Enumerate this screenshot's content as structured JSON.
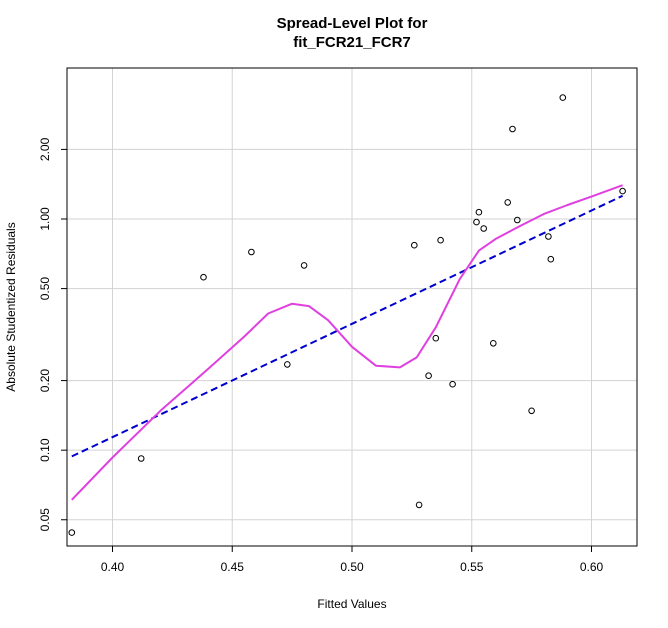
{
  "chart_data": {
    "type": "scatter",
    "title": [
      "Spread-Level Plot for",
      "fit_FCR21_FCR7"
    ],
    "xlabel": "Fitted Values",
    "ylabel": "Absolute Studentized Residuals",
    "xlim": [
      0.381,
      0.619
    ],
    "ylim": [
      0.0385,
      4.5
    ],
    "y_scale": "log",
    "grid": true,
    "x_ticks": [
      0.4,
      0.45,
      0.5,
      0.55,
      0.6
    ],
    "x_tick_labels": [
      "0.40",
      "0.45",
      "0.50",
      "0.55",
      "0.60"
    ],
    "y_ticks": [
      0.05,
      0.1,
      0.2,
      0.5,
      1.0,
      2.0
    ],
    "y_tick_labels": [
      "0.05",
      "0.10",
      "0.20",
      "0.50",
      "1.00",
      "2.00"
    ],
    "colors": {
      "points": "#000000",
      "fit_line": "#0000cd",
      "smooth_line": "#e040e0",
      "grid": "#d3d3d3"
    },
    "points": [
      {
        "x": 0.383,
        "y": 0.044
      },
      {
        "x": 0.412,
        "y": 0.092
      },
      {
        "x": 0.438,
        "y": 0.56
      },
      {
        "x": 0.458,
        "y": 0.72
      },
      {
        "x": 0.473,
        "y": 0.235
      },
      {
        "x": 0.48,
        "y": 0.63
      },
      {
        "x": 0.526,
        "y": 0.77
      },
      {
        "x": 0.528,
        "y": 0.058
      },
      {
        "x": 0.532,
        "y": 0.21
      },
      {
        "x": 0.535,
        "y": 0.305
      },
      {
        "x": 0.537,
        "y": 0.81
      },
      {
        "x": 0.542,
        "y": 0.193
      },
      {
        "x": 0.552,
        "y": 0.97
      },
      {
        "x": 0.553,
        "y": 1.07
      },
      {
        "x": 0.555,
        "y": 0.91
      },
      {
        "x": 0.559,
        "y": 0.29
      },
      {
        "x": 0.565,
        "y": 1.18
      },
      {
        "x": 0.567,
        "y": 2.45
      },
      {
        "x": 0.569,
        "y": 0.99
      },
      {
        "x": 0.575,
        "y": 0.148
      },
      {
        "x": 0.582,
        "y": 0.84
      },
      {
        "x": 0.583,
        "y": 0.67
      },
      {
        "x": 0.588,
        "y": 3.35
      },
      {
        "x": 0.613,
        "y": 1.32
      }
    ],
    "fit_line": [
      {
        "x": 0.383,
        "y": 0.094
      },
      {
        "x": 0.613,
        "y": 1.26
      }
    ],
    "smooth_line": [
      {
        "x": 0.383,
        "y": 0.061
      },
      {
        "x": 0.4,
        "y": 0.093
      },
      {
        "x": 0.42,
        "y": 0.148
      },
      {
        "x": 0.44,
        "y": 0.225
      },
      {
        "x": 0.455,
        "y": 0.31
      },
      {
        "x": 0.465,
        "y": 0.39
      },
      {
        "x": 0.475,
        "y": 0.43
      },
      {
        "x": 0.482,
        "y": 0.42
      },
      {
        "x": 0.49,
        "y": 0.365
      },
      {
        "x": 0.5,
        "y": 0.28
      },
      {
        "x": 0.51,
        "y": 0.232
      },
      {
        "x": 0.52,
        "y": 0.228
      },
      {
        "x": 0.527,
        "y": 0.252
      },
      {
        "x": 0.535,
        "y": 0.34
      },
      {
        "x": 0.545,
        "y": 0.55
      },
      {
        "x": 0.553,
        "y": 0.73
      },
      {
        "x": 0.56,
        "y": 0.82
      },
      {
        "x": 0.57,
        "y": 0.93
      },
      {
        "x": 0.58,
        "y": 1.05
      },
      {
        "x": 0.59,
        "y": 1.15
      },
      {
        "x": 0.6,
        "y": 1.25
      },
      {
        "x": 0.613,
        "y": 1.4
      }
    ]
  }
}
